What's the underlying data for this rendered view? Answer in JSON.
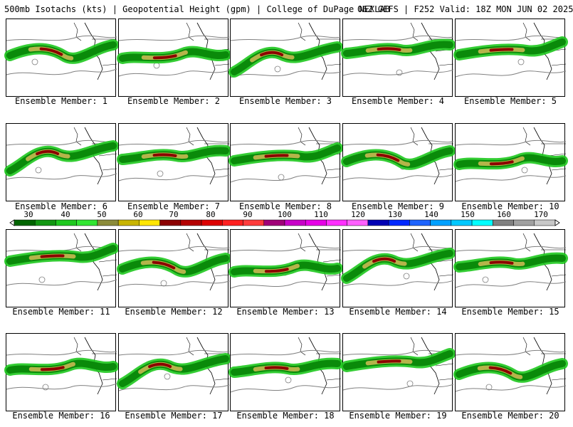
{
  "header": {
    "product": "500mb Isotachs (kts) | Geopotential Height (gpm) | College of DuPage NEXLAB",
    "run": "06Z GEFS | F252 Valid: 18Z MON JUN 02 2025"
  },
  "members": [
    {
      "label": "Ensemble Member: 1"
    },
    {
      "label": "Ensemble Member: 2"
    },
    {
      "label": "Ensemble Member: 3"
    },
    {
      "label": "Ensemble Member: 4"
    },
    {
      "label": "Ensemble Member: 5"
    },
    {
      "label": "Ensemble Member: 6"
    },
    {
      "label": "Ensemble Member: 7"
    },
    {
      "label": "Ensemble Member: 8"
    },
    {
      "label": "Ensemble Member: 9"
    },
    {
      "label": "Ensemble Member: 10"
    },
    {
      "label": "Ensemble Member: 11"
    },
    {
      "label": "Ensemble Member: 12"
    },
    {
      "label": "Ensemble Member: 13"
    },
    {
      "label": "Ensemble Member: 14"
    },
    {
      "label": "Ensemble Member: 15"
    },
    {
      "label": "Ensemble Member: 16"
    },
    {
      "label": "Ensemble Member: 17"
    },
    {
      "label": "Ensemble Member: 18"
    },
    {
      "label": "Ensemble Member: 19"
    },
    {
      "label": "Ensemble Member: 20"
    }
  ],
  "colorbar": {
    "labels": [
      "30",
      "40",
      "50",
      "60",
      "70",
      "80",
      "90",
      "100",
      "110",
      "120",
      "130",
      "140",
      "150",
      "160",
      "170"
    ],
    "colors": [
      "#006400",
      "#129612",
      "#1ec81e",
      "#32e632",
      "#8b8b3a",
      "#c8b400",
      "#ffe600",
      "#8b0000",
      "#b40000",
      "#dc0000",
      "#ff2020",
      "#ff3c3c",
      "#a00078",
      "#c800c8",
      "#e600e6",
      "#ff30ff",
      "#ff60ff",
      "#0000b4",
      "#0028ff",
      "#1e64ff",
      "#00a0ff",
      "#00c8ff",
      "#00ffff",
      "#808080",
      "#a0a0a0",
      "#c8c8c8"
    ]
  },
  "jet_colors": {
    "core_slow": "#1ec81e",
    "core_mid": "#b4b44a",
    "core_fast": "#8b0000"
  }
}
